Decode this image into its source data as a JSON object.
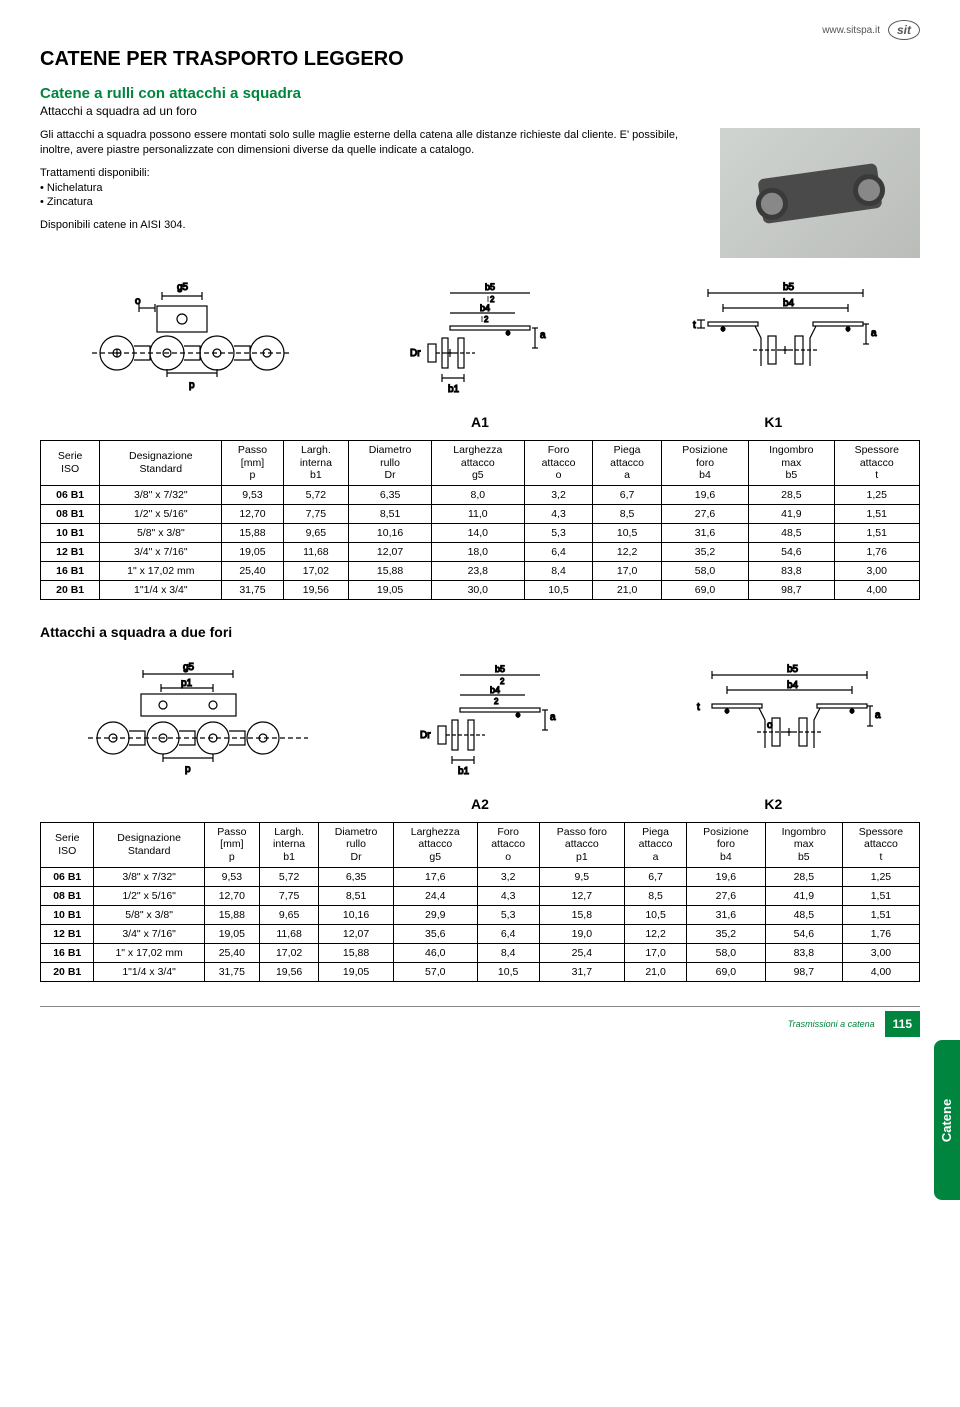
{
  "header": {
    "url": "www.sitspa.it",
    "logo": "sit"
  },
  "title": "CATENE PER TRASPORTO LEGGERO",
  "subtitle": "Catene a rulli con attacchi a squadra",
  "sub2": "Attacchi a squadra ad un foro",
  "intro": {
    "p1": "Gli attacchi a squadra possono essere montati solo sulle maglie esterne della catena alle distanze richieste dal cliente. E' possibile, inoltre, avere piastre personalizzate con dimensioni diverse da quelle indicate a catalogo.",
    "p2": "Trattamenti disponibili:",
    "b1": "• Nichelatura",
    "b2": "• Zincatura",
    "p3": "Disponibili catene in AISI 304."
  },
  "diag_labels_1": {
    "left": "",
    "mid": "A1",
    "right": "K1"
  },
  "table1": {
    "columns": [
      "Serie\nISO",
      "Designazione\nStandard",
      "Passo\n[mm]\np",
      "Largh.\ninterna\nb1",
      "Diametro\nrullo\nDr",
      "Larghezza\nattacco\ng5",
      "Foro\nattacco\no",
      "Piega\nattacco\na",
      "Posizione\nforo\nb4",
      "Ingombro\nmax\nb5",
      "Spessore\nattacco\nt"
    ],
    "rows": [
      [
        "06 B1",
        "3/8\" x 7/32\"",
        "9,53",
        "5,72",
        "6,35",
        "8,0",
        "3,2",
        "6,7",
        "19,6",
        "28,5",
        "1,25"
      ],
      [
        "08 B1",
        "1/2\" x 5/16\"",
        "12,70",
        "7,75",
        "8,51",
        "11,0",
        "4,3",
        "8,5",
        "27,6",
        "41,9",
        "1,51"
      ],
      [
        "10 B1",
        "5/8\" x 3/8\"",
        "15,88",
        "9,65",
        "10,16",
        "14,0",
        "5,3",
        "10,5",
        "31,6",
        "48,5",
        "1,51"
      ],
      [
        "12 B1",
        "3/4\" x 7/16\"",
        "19,05",
        "11,68",
        "12,07",
        "18,0",
        "6,4",
        "12,2",
        "35,2",
        "54,6",
        "1,76"
      ],
      [
        "16 B1",
        "1\" x 17,02 mm",
        "25,40",
        "17,02",
        "15,88",
        "23,8",
        "8,4",
        "17,0",
        "58,0",
        "83,8",
        "3,00"
      ],
      [
        "20 B1",
        "1\"1/4 x 3/4\"",
        "31,75",
        "19,56",
        "19,05",
        "30,0",
        "10,5",
        "21,0",
        "69,0",
        "98,7",
        "4,00"
      ]
    ]
  },
  "section2_title": "Attacchi a squadra a due fori",
  "diag_labels_2": {
    "left": "",
    "mid": "A2",
    "right": "K2"
  },
  "table2": {
    "columns": [
      "Serie\nISO",
      "Designazione\nStandard",
      "Passo\n[mm]\np",
      "Largh.\ninterna\nb1",
      "Diametro\nrullo\nDr",
      "Larghezza\nattacco\ng5",
      "Foro\nattacco\no",
      "Passo foro\nattacco\np1",
      "Piega\nattacco\na",
      "Posizione\nforo\nb4",
      "Ingombro\nmax\nb5",
      "Spessore\nattacco\nt"
    ],
    "rows": [
      [
        "06 B1",
        "3/8\" x 7/32\"",
        "9,53",
        "5,72",
        "6,35",
        "17,6",
        "3,2",
        "9,5",
        "6,7",
        "19,6",
        "28,5",
        "1,25"
      ],
      [
        "08 B1",
        "1/2\" x 5/16\"",
        "12,70",
        "7,75",
        "8,51",
        "24,4",
        "4,3",
        "12,7",
        "8,5",
        "27,6",
        "41,9",
        "1,51"
      ],
      [
        "10 B1",
        "5/8\" x 3/8\"",
        "15,88",
        "9,65",
        "10,16",
        "29,9",
        "5,3",
        "15,8",
        "10,5",
        "31,6",
        "48,5",
        "1,51"
      ],
      [
        "12 B1",
        "3/4\" x 7/16\"",
        "19,05",
        "11,68",
        "12,07",
        "35,6",
        "6,4",
        "19,0",
        "12,2",
        "35,2",
        "54,6",
        "1,76"
      ],
      [
        "16 B1",
        "1\" x 17,02 mm",
        "25,40",
        "17,02",
        "15,88",
        "46,0",
        "8,4",
        "25,4",
        "17,0",
        "58,0",
        "83,8",
        "3,00"
      ],
      [
        "20 B1",
        "1\"1/4 x 3/4\"",
        "31,75",
        "19,56",
        "19,05",
        "57,0",
        "10,5",
        "31,7",
        "21,0",
        "69,0",
        "98,7",
        "4,00"
      ]
    ]
  },
  "side_tab": "Catene",
  "footer": {
    "text": "Trasmissioni a catena",
    "page": "115"
  },
  "svg_labels": {
    "g5": "g5",
    "o": "o",
    "p": "p",
    "Dr": "Dr",
    "b1": "b1",
    "a": "a",
    "b4": "b4",
    "b5": "b5",
    "t": "t",
    "p1": "p1",
    "b5_2": "b5",
    "b4_2": "b4",
    "half": "2"
  }
}
